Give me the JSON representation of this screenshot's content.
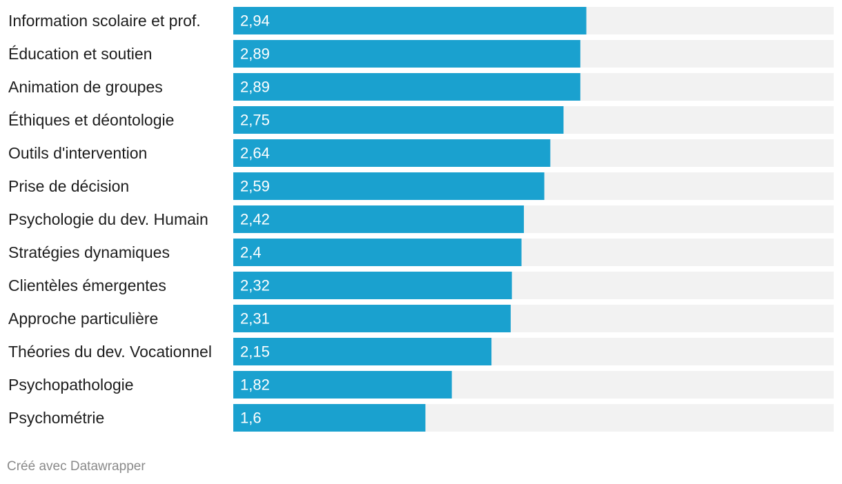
{
  "chart_data": {
    "type": "bar",
    "orientation": "horizontal",
    "categories": [
      "Information scolaire et prof.",
      "Éducation et soutien",
      "Animation de groupes",
      "Éthiques et déontologie",
      "Outils d'intervention",
      "Prise de décision",
      "Psychologie du dev. Humain",
      "Stratégies dynamiques",
      "Clientèles émergentes",
      "Approche particulière",
      "Théories du dev. Vocationnel",
      "Psychopathologie",
      "Psychométrie"
    ],
    "values": [
      2.94,
      2.89,
      2.89,
      2.75,
      2.64,
      2.59,
      2.42,
      2.4,
      2.32,
      2.31,
      2.15,
      1.82,
      1.6
    ],
    "value_labels": [
      "2,94",
      "2,89",
      "2,89",
      "2,75",
      "2,64",
      "2,59",
      "2,42",
      "2,4",
      "2,32",
      "2,31",
      "2,15",
      "1,82",
      "1,6"
    ],
    "xlim": [
      0,
      5
    ],
    "bar_color": "#1aa1cf",
    "track_color": "#f2f2f2",
    "label_color": "#1d1d1d",
    "value_label_color": "#ffffff",
    "grid": false,
    "legend": "none"
  },
  "credit": "Créé avec Datawrapper"
}
